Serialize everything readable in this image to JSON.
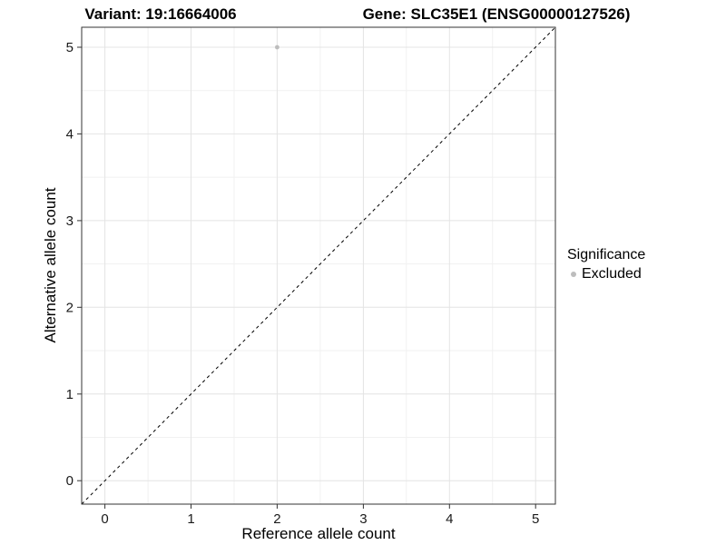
{
  "chart_data": {
    "type": "scatter",
    "titles": {
      "left": "Variant: 19:16664006",
      "right": "Gene: SLC35E1 (ENSG00000127526)"
    },
    "xlabel": "Reference allele count",
    "ylabel": "Alternative allele count",
    "xlim": [
      -0.27,
      5.23
    ],
    "ylim": [
      -0.27,
      5.23
    ],
    "xticks": [
      0,
      1,
      2,
      3,
      4,
      5
    ],
    "yticks": [
      0,
      1,
      2,
      3,
      4,
      5
    ],
    "grid": "on",
    "legend": {
      "title": "Significance",
      "position": "right",
      "entries": [
        {
          "label": "Excluded",
          "color": "#bdbdbd"
        }
      ]
    },
    "series": [
      {
        "name": "Excluded",
        "color": "#bdbdbd",
        "points": [
          {
            "x": 2,
            "y": 5
          }
        ]
      }
    ],
    "reference_line": {
      "slope": 1,
      "intercept": 0,
      "style": "dashed",
      "color": "#000000"
    },
    "colors": {
      "grid_major": "#e4e4e4",
      "grid_minor": "#f1f1f1",
      "panel_border": "#333333",
      "axis": "#333333",
      "text": "#1a1a1a",
      "background": "#ffffff"
    }
  }
}
